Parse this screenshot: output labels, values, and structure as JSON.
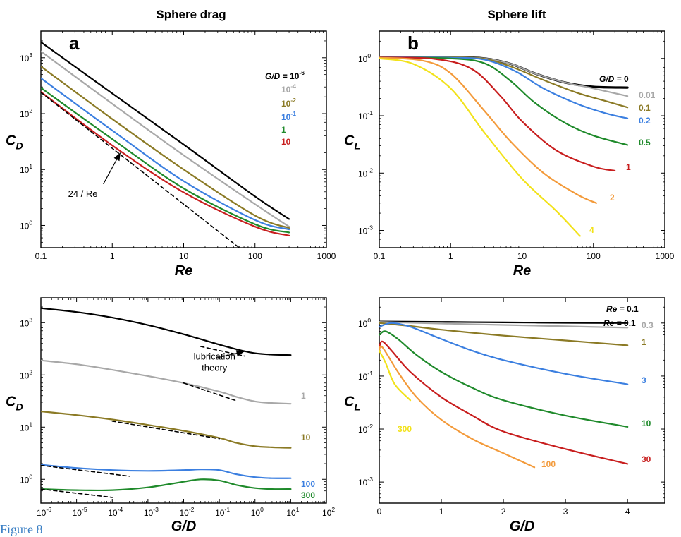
{
  "columns": {
    "left_title": "Sphere drag",
    "right_title": "Sphere lift"
  },
  "figure_caption": "Figure 8",
  "colors": {
    "black": "#000000",
    "gray": "#a8a8a8",
    "olive": "#8b7a25",
    "blue": "#3b7fe0",
    "green": "#1f8a2b",
    "red": "#c81e1e",
    "orange": "#f39a3a",
    "yellow": "#f2e21a"
  },
  "chart_data": [
    {
      "id": "a",
      "type": "line",
      "panel_label": "a",
      "xlabel": "Re",
      "ylabel_main": "C",
      "ylabel_sub": "D",
      "xscale": "log",
      "yscale": "log",
      "xlim": [
        0.1,
        1000
      ],
      "ylim": [
        0.4,
        3000
      ],
      "xticks": [
        {
          "v": 0.1,
          "label": "0.1"
        },
        {
          "v": 1,
          "label": "1"
        },
        {
          "v": 10,
          "label": "10"
        },
        {
          "v": 100,
          "label": "100"
        },
        {
          "v": 1000,
          "label": "1000"
        }
      ],
      "yticks": [
        {
          "v": 1,
          "b": "10",
          "e": "0"
        },
        {
          "v": 10,
          "b": "10",
          "e": "1"
        },
        {
          "v": 100,
          "b": "10",
          "e": "2"
        },
        {
          "v": 1000,
          "b": "10",
          "e": "3"
        }
      ],
      "legend_title": {
        "prefix": "G/D = ",
        "b": "10",
        "e": "-6"
      },
      "series": [
        {
          "name": "10^-6",
          "color": "black",
          "x": [
            0.1,
            1,
            10,
            100,
            300
          ],
          "y": [
            1900,
            230,
            28,
            3.3,
            1.3
          ],
          "label": {
            "b": "",
            "t": "",
            "dash": ""
          }
        },
        {
          "name": "10^-4",
          "color": "gray",
          "x": [
            0.1,
            1,
            10,
            100,
            300
          ],
          "y": [
            1300,
            150,
            18,
            2.4,
            0.95
          ],
          "label": {
            "b": "10",
            "e": "-4"
          }
        },
        {
          "name": "10^-2",
          "color": "olive",
          "x": [
            0.1,
            1,
            10,
            100,
            300
          ],
          "y": [
            700,
            80,
            10,
            1.5,
            0.9
          ],
          "label": {
            "b": "10",
            "e": "-2"
          }
        },
        {
          "name": "10^-1",
          "color": "blue",
          "x": [
            0.1,
            1,
            10,
            100,
            300
          ],
          "y": [
            430,
            50,
            6.2,
            1.25,
            0.85
          ],
          "label": {
            "b": "10",
            "e": "-1"
          }
        },
        {
          "name": "1",
          "color": "green",
          "x": [
            0.1,
            1,
            10,
            100,
            300
          ],
          "y": [
            290,
            35,
            4.6,
            1.05,
            0.75
          ],
          "label": {
            "t": "1"
          }
        },
        {
          "name": "10",
          "color": "red",
          "x": [
            0.1,
            1,
            10,
            100,
            300
          ],
          "y": [
            245,
            27,
            3.9,
            0.95,
            0.66
          ],
          "label": {
            "t": "10"
          }
        },
        {
          "name": "24/Re",
          "color": "black",
          "dashed": true,
          "x": [
            0.1,
            60
          ],
          "y": [
            240,
            0.4
          ]
        }
      ],
      "annotation": {
        "text": "24 / Re",
        "arrow_from": [
          0.75,
          5.5
        ],
        "arrow_to": [
          1.3,
          20
        ]
      }
    },
    {
      "id": "b",
      "type": "line",
      "panel_label": "b",
      "xlabel": "Re",
      "ylabel_main": "C",
      "ylabel_sub": "L",
      "xscale": "log",
      "yscale": "log",
      "xlim": [
        0.1,
        1000
      ],
      "ylim": [
        0.0005,
        3
      ],
      "xticks": [
        {
          "v": 0.1,
          "label": "0.1"
        },
        {
          "v": 1,
          "label": "1"
        },
        {
          "v": 10,
          "label": "10"
        },
        {
          "v": 100,
          "label": "100"
        },
        {
          "v": 1000,
          "label": "1000"
        }
      ],
      "yticks": [
        {
          "v": 0.001,
          "b": "10",
          "e": "-3"
        },
        {
          "v": 0.01,
          "b": "10",
          "e": "-2"
        },
        {
          "v": 0.1,
          "b": "10",
          "e": "-1"
        },
        {
          "v": 1,
          "b": "10",
          "e": "0"
        }
      ],
      "series": [
        {
          "name": "G/D = 0",
          "color": "black",
          "width": 3.2,
          "x": [
            0.1,
            1,
            3,
            7,
            15,
            40,
            100,
            300
          ],
          "y": [
            1.05,
            1.05,
            1.0,
            0.8,
            0.55,
            0.38,
            0.32,
            0.31
          ],
          "label": {
            "t": "0",
            "prefix": "G/D = "
          }
        },
        {
          "name": "0.01",
          "color": "gray",
          "x": [
            0.1,
            1,
            3,
            7,
            15,
            40,
            100,
            300
          ],
          "y": [
            1.05,
            1.05,
            1.0,
            0.8,
            0.55,
            0.38,
            0.3,
            0.22
          ],
          "label": {
            "t": "0.01"
          }
        },
        {
          "name": "0.1",
          "color": "olive",
          "x": [
            0.1,
            1,
            3,
            7,
            20,
            60,
            150,
            300
          ],
          "y": [
            1.05,
            1.05,
            0.98,
            0.72,
            0.42,
            0.25,
            0.18,
            0.14
          ],
          "label": {
            "t": "0.1"
          }
        },
        {
          "name": "0.2",
          "color": "blue",
          "x": [
            0.1,
            1,
            3,
            8,
            20,
            60,
            150,
            300
          ],
          "y": [
            1.05,
            1.03,
            0.95,
            0.6,
            0.3,
            0.16,
            0.11,
            0.09
          ],
          "label": {
            "t": "0.2"
          }
        },
        {
          "name": "0.5",
          "color": "green",
          "x": [
            0.1,
            1,
            3,
            7,
            15,
            40,
            100,
            300
          ],
          "y": [
            1.04,
            1.0,
            0.82,
            0.4,
            0.17,
            0.075,
            0.045,
            0.031
          ],
          "label": {
            "t": "0.5"
          }
        },
        {
          "name": "1",
          "color": "red",
          "x": [
            0.1,
            0.6,
            2,
            5,
            10,
            30,
            100,
            200
          ],
          "y": [
            1.04,
            0.98,
            0.65,
            0.22,
            0.08,
            0.025,
            0.013,
            0.011
          ],
          "label": {
            "t": "1"
          }
        },
        {
          "name": "2",
          "color": "orange",
          "x": [
            0.1,
            0.4,
            1,
            3,
            7,
            20,
            60,
            110
          ],
          "y": [
            1.03,
            0.92,
            0.55,
            0.12,
            0.035,
            0.01,
            0.0042,
            0.003
          ],
          "label": {
            "t": "2"
          }
        },
        {
          "name": "4",
          "color": "yellow",
          "x": [
            0.1,
            0.3,
            1,
            3,
            10,
            30,
            65
          ],
          "y": [
            1.0,
            0.8,
            0.3,
            0.05,
            0.008,
            0.0022,
            0.0008
          ],
          "label": {
            "t": "4"
          }
        }
      ]
    },
    {
      "id": "c",
      "type": "line",
      "xlabel": "G/D",
      "ylabel_main": "C",
      "ylabel_sub": "D",
      "xscale": "log",
      "yscale": "log",
      "xlim": [
        1e-06,
        100
      ],
      "ylim": [
        0.35,
        3000
      ],
      "xticks": [
        {
          "v": 1e-06,
          "b": "10",
          "e": "-6"
        },
        {
          "v": 1e-05,
          "b": "10",
          "e": "-5"
        },
        {
          "v": 0.0001,
          "b": "10",
          "e": "-4"
        },
        {
          "v": 0.001,
          "b": "10",
          "e": "-3"
        },
        {
          "v": 0.01,
          "b": "10",
          "e": "-2"
        },
        {
          "v": 0.1,
          "b": "10",
          "e": "-1"
        },
        {
          "v": 1,
          "b": "10",
          "e": "0"
        },
        {
          "v": 10,
          "b": "10",
          "e": "1"
        },
        {
          "v": 100,
          "b": "10",
          "e": "2"
        }
      ],
      "yticks": [
        {
          "v": 1,
          "b": "10",
          "e": "0"
        },
        {
          "v": 10,
          "b": "10",
          "e": "1"
        },
        {
          "v": 100,
          "b": "10",
          "e": "2"
        },
        {
          "v": 1000,
          "b": "10",
          "e": "3"
        }
      ],
      "series": [
        {
          "name": "Re = 0.1",
          "color": "black",
          "x": [
            1e-06,
            1e-05,
            0.0001,
            0.001,
            0.01,
            0.1,
            0.3,
            1,
            3,
            10
          ],
          "y": [
            1900,
            1600,
            1250,
            900,
            600,
            380,
            310,
            260,
            245,
            240
          ],
          "label": {
            "t": "0.1",
            "prefix": "Re = "
          }
        },
        {
          "name": "1",
          "color": "gray",
          "x": [
            1e-06,
            1e-05,
            0.0001,
            0.001,
            0.01,
            0.1,
            0.3,
            1,
            3,
            10
          ],
          "y": [
            190,
            160,
            125,
            95,
            70,
            48,
            38,
            31,
            29,
            28
          ],
          "label": {
            "t": "1"
          }
        },
        {
          "name": "10",
          "color": "olive",
          "x": [
            1e-06,
            1e-05,
            0.0001,
            0.001,
            0.01,
            0.1,
            0.3,
            1,
            3,
            10
          ],
          "y": [
            20,
            17,
            14,
            11,
            8.5,
            6.2,
            5,
            4.3,
            4.1,
            4.0
          ],
          "label": {
            "t": "10"
          }
        },
        {
          "name": "100",
          "color": "blue",
          "x": [
            1e-06,
            1e-05,
            0.0001,
            0.001,
            0.01,
            0.03,
            0.1,
            0.3,
            1,
            3,
            10
          ],
          "y": [
            1.9,
            1.65,
            1.5,
            1.45,
            1.5,
            1.55,
            1.5,
            1.25,
            1.1,
            1.05,
            1.05
          ],
          "label": {
            "t": "100"
          }
        },
        {
          "name": "300",
          "color": "green",
          "x": [
            1e-06,
            1e-05,
            0.0001,
            0.001,
            0.01,
            0.03,
            0.1,
            0.3,
            1,
            3,
            10
          ],
          "y": [
            0.65,
            0.62,
            0.62,
            0.7,
            0.9,
            1.0,
            0.95,
            0.78,
            0.68,
            0.65,
            0.65
          ],
          "label": {
            "t": "300"
          }
        },
        {
          "name": "lub-0.1",
          "color": "black",
          "dashed": true,
          "x": [
            0.03,
            0.5
          ],
          "y": [
            350,
            230
          ]
        },
        {
          "name": "lub-1",
          "color": "black",
          "dashed": true,
          "x": [
            0.01,
            0.3
          ],
          "y": [
            70,
            32
          ]
        },
        {
          "name": "lub-10",
          "color": "black",
          "dashed": true,
          "x": [
            0.0001,
            0.1
          ],
          "y": [
            13,
            6
          ]
        },
        {
          "name": "lub-100",
          "color": "black",
          "dashed": true,
          "x": [
            1e-06,
            0.0003
          ],
          "y": [
            1.85,
            1.15
          ]
        },
        {
          "name": "lub-300",
          "color": "black",
          "dashed": true,
          "x": [
            1e-06,
            0.0001
          ],
          "y": [
            0.65,
            0.45
          ]
        }
      ],
      "annotation": {
        "line1": "lubrication",
        "line2": "theory",
        "arrow_from": [
          0.08,
          210
        ],
        "arrow_to": [
          0.5,
          280
        ]
      }
    },
    {
      "id": "d",
      "type": "line",
      "xlabel": "G/D",
      "ylabel_main": "C",
      "ylabel_sub": "L",
      "xscale": "linear",
      "yscale": "log",
      "xlim": [
        0,
        4.6
      ],
      "ylim": [
        0.0004,
        3
      ],
      "xticks": [
        {
          "v": 0,
          "label": "0"
        },
        {
          "v": 1,
          "label": "1"
        },
        {
          "v": 2,
          "label": "2"
        },
        {
          "v": 3,
          "label": "3"
        },
        {
          "v": 4,
          "label": "4"
        }
      ],
      "yticks": [
        {
          "v": 0.001,
          "b": "10",
          "e": "-3"
        },
        {
          "v": 0.01,
          "b": "10",
          "e": "-2"
        },
        {
          "v": 0.1,
          "b": "10",
          "e": "-1"
        },
        {
          "v": 1,
          "b": "10",
          "e": "0"
        }
      ],
      "series": [
        {
          "name": "Re = 0.1",
          "color": "black",
          "x": [
            0,
            1,
            2,
            3,
            4
          ],
          "y": [
            1.07,
            1.05,
            1.03,
            1.01,
            1.0
          ],
          "label": {
            "t": "0.1",
            "prefix": "Re = "
          }
        },
        {
          "name": "0.3",
          "color": "gray",
          "x": [
            0,
            1,
            2,
            3,
            4
          ],
          "y": [
            1.05,
            0.98,
            0.92,
            0.87,
            0.82
          ],
          "label": {
            "t": "0.3"
          }
        },
        {
          "name": "1",
          "color": "olive",
          "x": [
            0,
            0.5,
            1,
            2,
            3,
            4
          ],
          "y": [
            1.0,
            0.88,
            0.75,
            0.58,
            0.47,
            0.38
          ],
          "label": {
            "t": "1"
          }
        },
        {
          "name": "3",
          "color": "blue",
          "x": [
            0,
            0.2,
            0.5,
            1,
            1.5,
            2,
            3,
            4
          ],
          "y": [
            0.85,
            1.0,
            0.85,
            0.5,
            0.3,
            0.2,
            0.11,
            0.07
          ],
          "label": {
            "t": "3"
          }
        },
        {
          "name": "10",
          "color": "green",
          "x": [
            0,
            0.1,
            0.3,
            0.6,
            1,
            1.5,
            2,
            3,
            4
          ],
          "y": [
            0.6,
            0.7,
            0.5,
            0.25,
            0.12,
            0.06,
            0.035,
            0.018,
            0.011
          ],
          "label": {
            "t": "10"
          }
        },
        {
          "name": "30",
          "color": "red",
          "x": [
            0,
            0.05,
            0.2,
            0.5,
            1,
            1.5,
            2,
            3,
            4
          ],
          "y": [
            0.35,
            0.45,
            0.3,
            0.12,
            0.04,
            0.018,
            0.009,
            0.0042,
            0.0022
          ],
          "label": {
            "t": "30"
          }
        },
        {
          "name": "100",
          "color": "orange",
          "x": [
            0,
            0.05,
            0.3,
            0.6,
            1,
            1.5,
            2,
            2.5
          ],
          "y": [
            0.3,
            0.35,
            0.12,
            0.04,
            0.015,
            0.0065,
            0.0035,
            0.0019
          ],
          "label": {
            "t": "100"
          }
        },
        {
          "name": "300",
          "color": "yellow",
          "x": [
            0,
            0.1,
            0.25,
            0.5
          ],
          "y": [
            0.3,
            0.18,
            0.07,
            0.035
          ],
          "label": {
            "t": "300"
          }
        }
      ]
    }
  ]
}
